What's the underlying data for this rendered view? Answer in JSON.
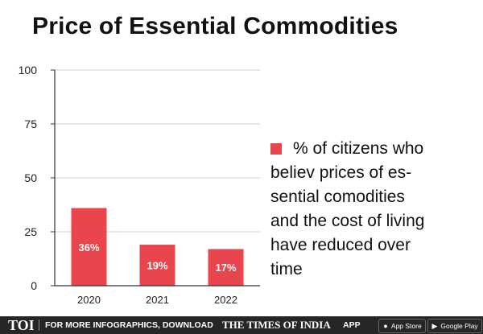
{
  "title": "Price of Essential Commodities",
  "chart_data": {
    "type": "bar",
    "categories": [
      "2020",
      "2021",
      "2022"
    ],
    "values": [
      36,
      19,
      17
    ],
    "data_labels": [
      "36%",
      "19%",
      "17%"
    ],
    "ylim": [
      0,
      100
    ],
    "yticks": [
      "0",
      "25",
      "50",
      "75",
      "100"
    ],
    "grid": true,
    "xlabel": "",
    "ylabel": "",
    "legend": {
      "position": "right",
      "label": "% of citizens who believ prices of es-sential comodities and the cost of living have reduced over time",
      "lines": [
        "% of citizens who",
        "believ prices of es-",
        "sential comodities",
        "and the cost of living",
        "have reduced over",
        "time"
      ]
    },
    "colors": {
      "bar": "#e8464c",
      "label": "#ffffff",
      "axis": "#333333",
      "grid": "#cfcfcf"
    }
  },
  "footer": {
    "logo": "TOI",
    "cta": "FOR MORE INFOGRAPHICS, DOWNLOAD",
    "brand": "THE TIMES OF INDIA",
    "app": "APP",
    "app_store": "App Store",
    "google_play": "Google Play",
    "bg_color": "#262626"
  }
}
